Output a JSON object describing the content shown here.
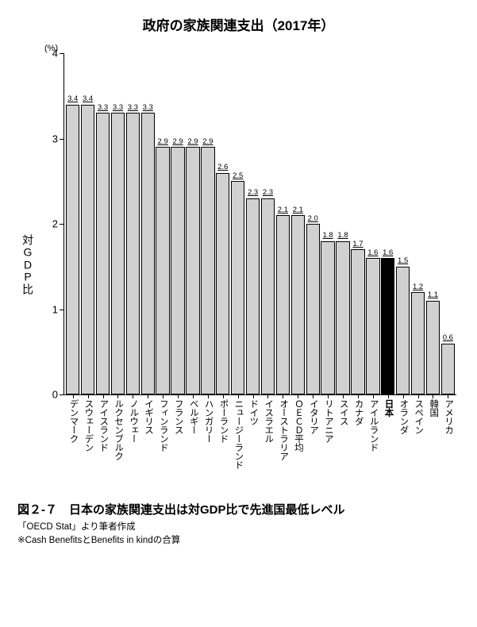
{
  "chart": {
    "type": "bar",
    "title": "政府の家族関連支出（2017年）",
    "y_unit_label": "(%)",
    "y_axis_label_chars": [
      "対",
      "G",
      "D",
      "P",
      "比"
    ],
    "ylim": [
      0,
      4
    ],
    "yticks": [
      0,
      1,
      2,
      3,
      4
    ],
    "default_bar_fill": "#d1d1d1",
    "highlight_bar_fill": "#000000",
    "bar_border": "#000000",
    "background": "#ffffff",
    "title_fontsize": 17,
    "value_fontsize": 9.5,
    "xlabel_fontsize": 11.5,
    "ytick_fontsize": 13,
    "bars": [
      {
        "label": "デンマーク",
        "value": 3.4
      },
      {
        "label": "スウェーデン",
        "value": 3.4
      },
      {
        "label": "アイスランド",
        "value": 3.3
      },
      {
        "label": "ルクセンブルク",
        "value": 3.3
      },
      {
        "label": "ノルウェー",
        "value": 3.3
      },
      {
        "label": "イギリス",
        "value": 3.3
      },
      {
        "label": "フィンランド",
        "value": 2.9
      },
      {
        "label": "フランス",
        "value": 2.9
      },
      {
        "label": "ベルギー",
        "value": 2.9
      },
      {
        "label": "ハンガリー",
        "value": 2.9
      },
      {
        "label": "ポーランド",
        "value": 2.6
      },
      {
        "label": "ニュージーランド",
        "value": 2.5
      },
      {
        "label": "ドイツ",
        "value": 2.3
      },
      {
        "label": "イスラエル",
        "value": 2.3
      },
      {
        "label": "オーストラリア",
        "value": 2.1
      },
      {
        "label": "ＯＥＣＤ平均",
        "value": 2.1
      },
      {
        "label": "イタリア",
        "value": 2.0
      },
      {
        "label": "リトアニア",
        "value": 1.8
      },
      {
        "label": "スイス",
        "value": 1.8
      },
      {
        "label": "カナダ",
        "value": 1.7
      },
      {
        "label": "アイルランド",
        "value": 1.6
      },
      {
        "label": "日本",
        "value": 1.6,
        "highlight": true,
        "bold_label": true
      },
      {
        "label": "オランダ",
        "value": 1.5
      },
      {
        "label": "スペイン",
        "value": 1.2
      },
      {
        "label": "韓国",
        "value": 1.1
      },
      {
        "label": "アメリカ",
        "value": 0.6
      }
    ]
  },
  "caption": "図２-７　日本の家族関連支出は対GDP比で先進国最低レベル",
  "source_line1": "「OECD Stat」より筆者作成",
  "source_line2": "※Cash BenefitsとBenefits in kindの合算"
}
